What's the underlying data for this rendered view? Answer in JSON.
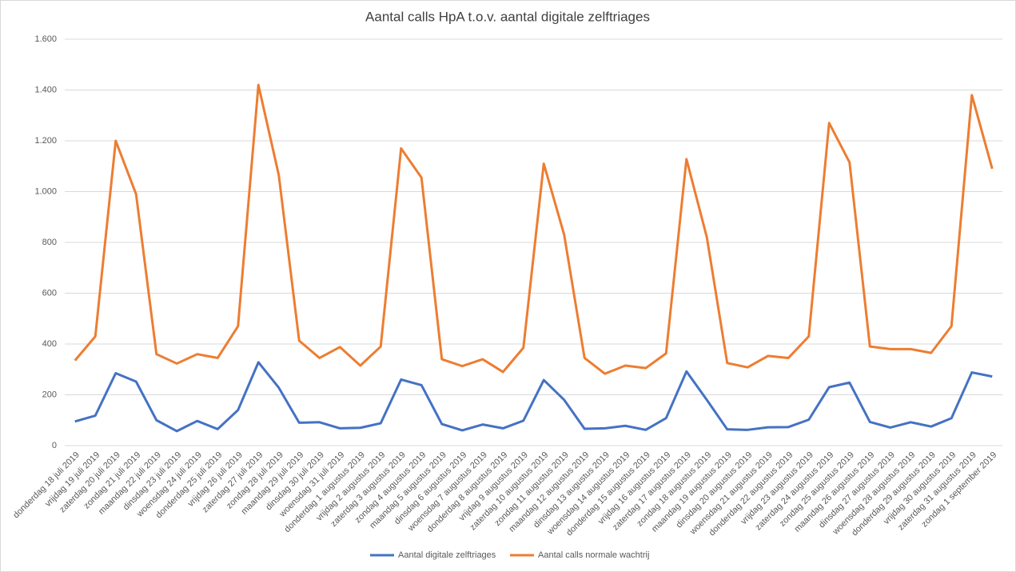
{
  "chart_data": {
    "type": "line",
    "title": "Aantal calls HpA t.o.v. aantal digitale zelftriages",
    "categories": [
      "donderdag 18 juli 2019",
      "vrijdag 19 juli 2019",
      "zaterdag 20 juli 2019",
      "zondag 21 juli 2019",
      "maandag 22 juli 2019",
      "dinsdag 23 juli 2019",
      "woensdag 24 juli 2019",
      "donderdag 25 juli 2019",
      "vrijdag 26 juli 2019",
      "zaterdag 27 juli 2019",
      "zondag 28 juli 2019",
      "maandag 29 juli 2019",
      "dinsdag 30 juli 2019",
      "woensdag 31 juli 2019",
      "donderdag 1 augustus 2019",
      "vrijdag 2 augustus 2019",
      "zaterdag 3 augustus 2019",
      "zondag 4 augustus 2019",
      "maandag 5 augustus 2019",
      "dinsdag 6 augustus 2019",
      "woensdag 7 augustus 2019",
      "donderdag 8 augustus 2019",
      "vrijdag 9 augustus 2019",
      "zaterdag 10 augustus 2019",
      "zondag 11 augustus 2019",
      "maandag 12 augustus 2019",
      "dinsdag 13 augustus 2019",
      "woensdag 14 augustus 2019",
      "donderdag 15 augustus 2019",
      "vrijdag 16 augustus 2019",
      "zaterdag 17 augustus 2019",
      "zondag 18 augustus 2019",
      "maandag 19 augustus 2019",
      "dinsdag 20 augustus 2019",
      "woensdag 21 augustus 2019",
      "donderdag 22 augustus 2019",
      "vrijdag 23 augustus 2019",
      "zaterdag 24 augustus 2019",
      "zondag 25 augustus 2019",
      "maandag 26 augustus 2019",
      "dinsdag 27 augustus 2019",
      "woensdag 28 augustus 2019",
      "donderdag 29 augustus 2019",
      "vrijdag 30 augustus 2019",
      "zaterdag 31 augustus 2019",
      "zondag 1 september 2019"
    ],
    "series": [
      {
        "name": "Aantal digitale zelftriages",
        "color": "#4472c4",
        "values": [
          95,
          118,
          285,
          252,
          100,
          57,
          97,
          65,
          140,
          328,
          228,
          90,
          92,
          68,
          70,
          88,
          260,
          238,
          85,
          60,
          83,
          68,
          98,
          258,
          180,
          66,
          68,
          78,
          62,
          108,
          292,
          180,
          64,
          62,
          72,
          73,
          102,
          230,
          248,
          93,
          71,
          92,
          75,
          108,
          288,
          272
        ]
      },
      {
        "name": "Aantal calls normale wachtrij",
        "color": "#ed7d31",
        "values": [
          335,
          430,
          1200,
          990,
          360,
          323,
          360,
          345,
          470,
          1420,
          1065,
          413,
          345,
          388,
          315,
          390,
          1170,
          1055,
          340,
          313,
          340,
          290,
          385,
          1110,
          830,
          345,
          283,
          315,
          305,
          363,
          1128,
          820,
          325,
          308,
          353,
          345,
          430,
          1270,
          1115,
          390,
          380,
          380,
          365,
          470,
          1380,
          1090
        ]
      }
    ],
    "ylim": [
      0,
      1600
    ],
    "yticks": [
      0,
      200,
      400,
      600,
      800,
      {
        "value": 1000,
        "label": "1.000"
      },
      {
        "value": 1200,
        "label": "1.200"
      },
      {
        "value": 1400,
        "label": "1.400"
      },
      {
        "value": 1600,
        "label": "1.600"
      }
    ],
    "grid": true,
    "legend": "bottom"
  }
}
